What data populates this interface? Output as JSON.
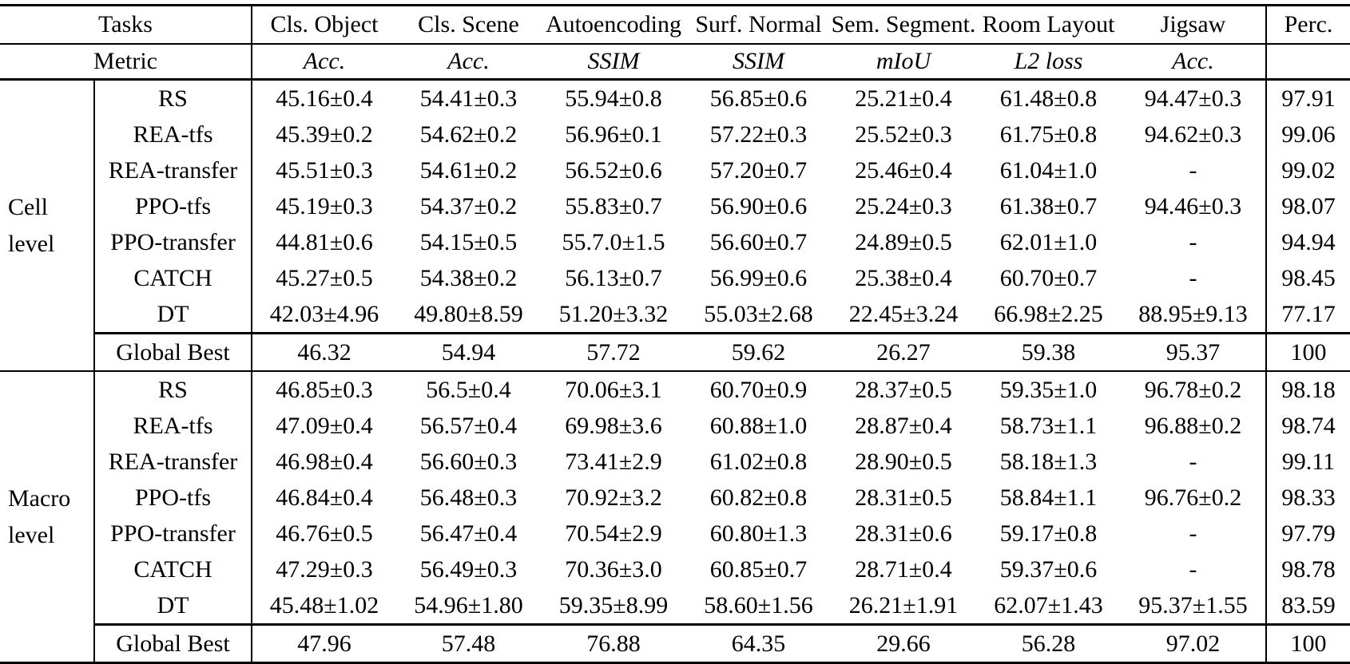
{
  "table": {
    "header": {
      "tasks_label": "Tasks",
      "metric_label": "Metric",
      "columns": [
        "Cls. Object",
        "Cls. Scene",
        "Autoencoding",
        "Surf. Normal",
        "Sem. Segment.",
        "Room Layout",
        "Jigsaw",
        "Perc."
      ],
      "metrics": [
        "Acc.",
        "Acc.",
        "SSIM",
        "SSIM",
        "mIoU",
        "L2 loss",
        "Acc.",
        ""
      ]
    },
    "sections": [
      {
        "level": "Cell level",
        "level_lines": [
          "Cell",
          "level"
        ],
        "rows": [
          {
            "method": "RS",
            "values": [
              "45.16±0.4",
              "54.41±0.3",
              "55.94±0.8",
              "56.85±0.6",
              "25.21±0.4",
              "61.48±0.8",
              "94.47±0.3",
              "97.91"
            ]
          },
          {
            "method": "REA-tfs",
            "values": [
              "45.39±0.2",
              "54.62±0.2",
              "56.96±0.1",
              "57.22±0.3",
              "25.52±0.3",
              "61.75±0.8",
              "94.62±0.3",
              "99.06"
            ]
          },
          {
            "method": "REA-transfer",
            "values": [
              "45.51±0.3",
              "54.61±0.2",
              "56.52±0.6",
              "57.20±0.7",
              "25.46±0.4",
              "61.04±1.0",
              "-",
              "99.02"
            ]
          },
          {
            "method": "PPO-tfs",
            "values": [
              "45.19±0.3",
              "54.37±0.2",
              "55.83±0.7",
              "56.90±0.6",
              "25.24±0.3",
              "61.38±0.7",
              "94.46±0.3",
              "98.07"
            ]
          },
          {
            "method": "PPO-transfer",
            "values": [
              "44.81±0.6",
              "54.15±0.5",
              "55.7.0±1.5",
              "56.60±0.7",
              "24.89±0.5",
              "62.01±1.0",
              "-",
              "94.94"
            ]
          },
          {
            "method": "CATCH",
            "values": [
              "45.27±0.5",
              "54.38±0.2",
              "56.13±0.7",
              "56.99±0.6",
              "25.38±0.4",
              "60.70±0.7",
              "-",
              "98.45"
            ]
          },
          {
            "method": "DT",
            "values": [
              "42.03±4.96",
              "49.80±8.59",
              "51.20±3.32",
              "55.03±2.68",
              "22.45±3.24",
              "66.98±2.25",
              "88.95±9.13",
              "77.17"
            ]
          }
        ],
        "global_best": {
          "label": "Global Best",
          "values": [
            "46.32",
            "54.94",
            "57.72",
            "59.62",
            "26.27",
            "59.38",
            "95.37",
            "100"
          ]
        }
      },
      {
        "level": "Macro level",
        "level_lines": [
          "Macro",
          "level"
        ],
        "rows": [
          {
            "method": "RS",
            "values": [
              "46.85±0.3",
              "56.5±0.4",
              "70.06±3.1",
              "60.70±0.9",
              "28.37±0.5",
              "59.35±1.0",
              "96.78±0.2",
              "98.18"
            ]
          },
          {
            "method": "REA-tfs",
            "values": [
              "47.09±0.4",
              "56.57±0.4",
              "69.98±3.6",
              "60.88±1.0",
              "28.87±0.4",
              "58.73±1.1",
              "96.88±0.2",
              "98.74"
            ]
          },
          {
            "method": "REA-transfer",
            "values": [
              "46.98±0.4",
              "56.60±0.3",
              "73.41±2.9",
              "61.02±0.8",
              "28.90±0.5",
              "58.18±1.3",
              "-",
              "99.11"
            ]
          },
          {
            "method": "PPO-tfs",
            "values": [
              "46.84±0.4",
              "56.48±0.3",
              "70.92±3.2",
              "60.82±0.8",
              "28.31±0.5",
              "58.84±1.1",
              "96.76±0.2",
              "98.33"
            ]
          },
          {
            "method": "PPO-transfer",
            "values": [
              "46.76±0.5",
              "56.47±0.4",
              "70.54±2.9",
              "60.80±1.3",
              "28.31±0.6",
              "59.17±0.8",
              "-",
              "97.79"
            ]
          },
          {
            "method": "CATCH",
            "values": [
              "47.29±0.3",
              "56.49±0.3",
              "70.36±3.0",
              "60.85±0.7",
              "28.71±0.4",
              "59.37±0.6",
              "-",
              "98.78"
            ]
          },
          {
            "method": "DT",
            "values": [
              "45.48±1.02",
              "54.96±1.80",
              "59.35±8.99",
              "58.60±1.56",
              "26.21±1.91",
              "62.07±1.43",
              "95.37±1.55",
              "83.59"
            ]
          }
        ],
        "global_best": {
          "label": "Global Best",
          "values": [
            "47.96",
            "57.48",
            "76.88",
            "64.35",
            "29.66",
            "56.28",
            "97.02",
            "100"
          ]
        }
      }
    ]
  }
}
